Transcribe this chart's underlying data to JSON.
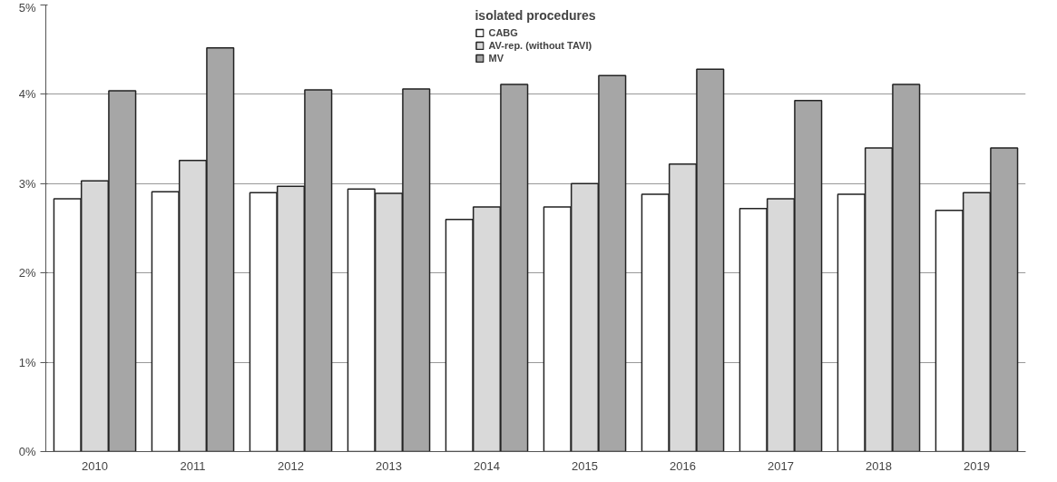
{
  "chart_data": {
    "type": "bar",
    "legend_title": "isolated procedures",
    "categories": [
      "2010",
      "2011",
      "2012",
      "2013",
      "2014",
      "2015",
      "2016",
      "2017",
      "2018",
      "2019"
    ],
    "series": [
      {
        "name": "CABG",
        "color": "#ffffff",
        "values": [
          2.83,
          2.91,
          2.9,
          2.94,
          2.6,
          2.74,
          2.88,
          2.72,
          2.88,
          2.7
        ]
      },
      {
        "name": "AV-rep. (without TAVI)",
        "color": "#d9d9d9",
        "values": [
          3.03,
          3.26,
          2.97,
          2.89,
          2.74,
          3.0,
          3.22,
          2.83,
          3.4,
          2.9
        ]
      },
      {
        "name": "MV",
        "color": "#a6a6a6",
        "values": [
          4.04,
          4.52,
          4.05,
          4.06,
          4.11,
          4.21,
          4.28,
          3.93,
          4.11,
          3.4
        ]
      }
    ],
    "ylim": [
      0,
      5
    ],
    "yticks": [
      {
        "value": 0,
        "label": "0%"
      },
      {
        "value": 1,
        "label": "1%"
      },
      {
        "value": 2,
        "label": "2%"
      },
      {
        "value": 3,
        "label": "3%"
      },
      {
        "value": 4,
        "label": "4%"
      },
      {
        "value": 5,
        "label": "5%"
      }
    ],
    "grid": "y",
    "legend": "top"
  }
}
